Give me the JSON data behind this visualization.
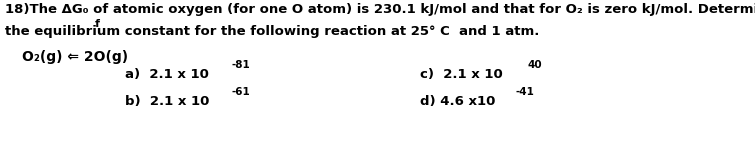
{
  "bg_color": "#ffffff",
  "text_color": "#000000",
  "line1": "18)The ΔG₀ of atomic oxygen (for one O atom) is 230.1 kJ/mol and that for O₂ is zero kJ/mol. Determine",
  "line1_f": "f",
  "line2": "the equilibrium constant for the following reaction at 25° C  and 1 atm.",
  "reaction": "O₂(g) ⇐ 2O(g)",
  "ans_a_base": "a)  2.1 x 10",
  "ans_a_sup": "-81",
  "ans_b_base": "b)  2.1 x 10",
  "ans_b_sup": "-61",
  "ans_c_base": "c)  2.1 x 10",
  "ans_c_sup": "40",
  "ans_d_base": "d) 4.6 x10",
  "ans_d_sup": "-41",
  "fontsize": 9.5,
  "fontsize_super": 7.5,
  "fontfamily": "DejaVu Sans",
  "fig_w": 7.55,
  "fig_h": 1.42,
  "dpi": 100
}
